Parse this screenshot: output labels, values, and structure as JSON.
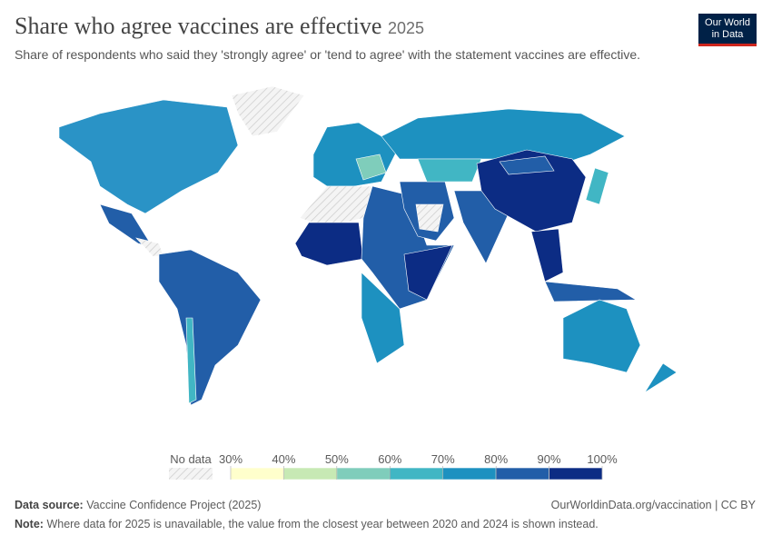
{
  "header": {
    "title": "Share who agree vaccines are effective",
    "year": "2025",
    "subtitle": "Share of respondents who said they 'strongly agree' or 'tend to agree' with the statement vaccines are effective.",
    "logo": [
      "Our World",
      "in Data"
    ]
  },
  "legend": {
    "no_data": "No data",
    "ticks": [
      {
        "value": 30,
        "label": "30%"
      },
      {
        "value": 40,
        "label": "40%"
      },
      {
        "value": 50,
        "label": "50%"
      },
      {
        "value": 60,
        "label": "60%"
      },
      {
        "value": 70,
        "label": "70%"
      },
      {
        "value": 80,
        "label": "80%"
      },
      {
        "value": 90,
        "label": "90%"
      },
      {
        "value": 100,
        "label": "100%"
      }
    ],
    "colors": [
      "#ffffcc",
      "#c7e9b4",
      "#7fcdbb",
      "#41b6c4",
      "#1d91c0",
      "#225ea8",
      "#0c2c84"
    ]
  },
  "footer": {
    "source_label": "Data source:",
    "source": "Vaccine Confidence Project (2025)",
    "link": "OurWorldinData.org/vaccination | CC BY",
    "note_label": "Note:",
    "note": "Where data for 2025 is unavailable, the value from the closest year between 2020 and 2024 is shown instead."
  }
}
